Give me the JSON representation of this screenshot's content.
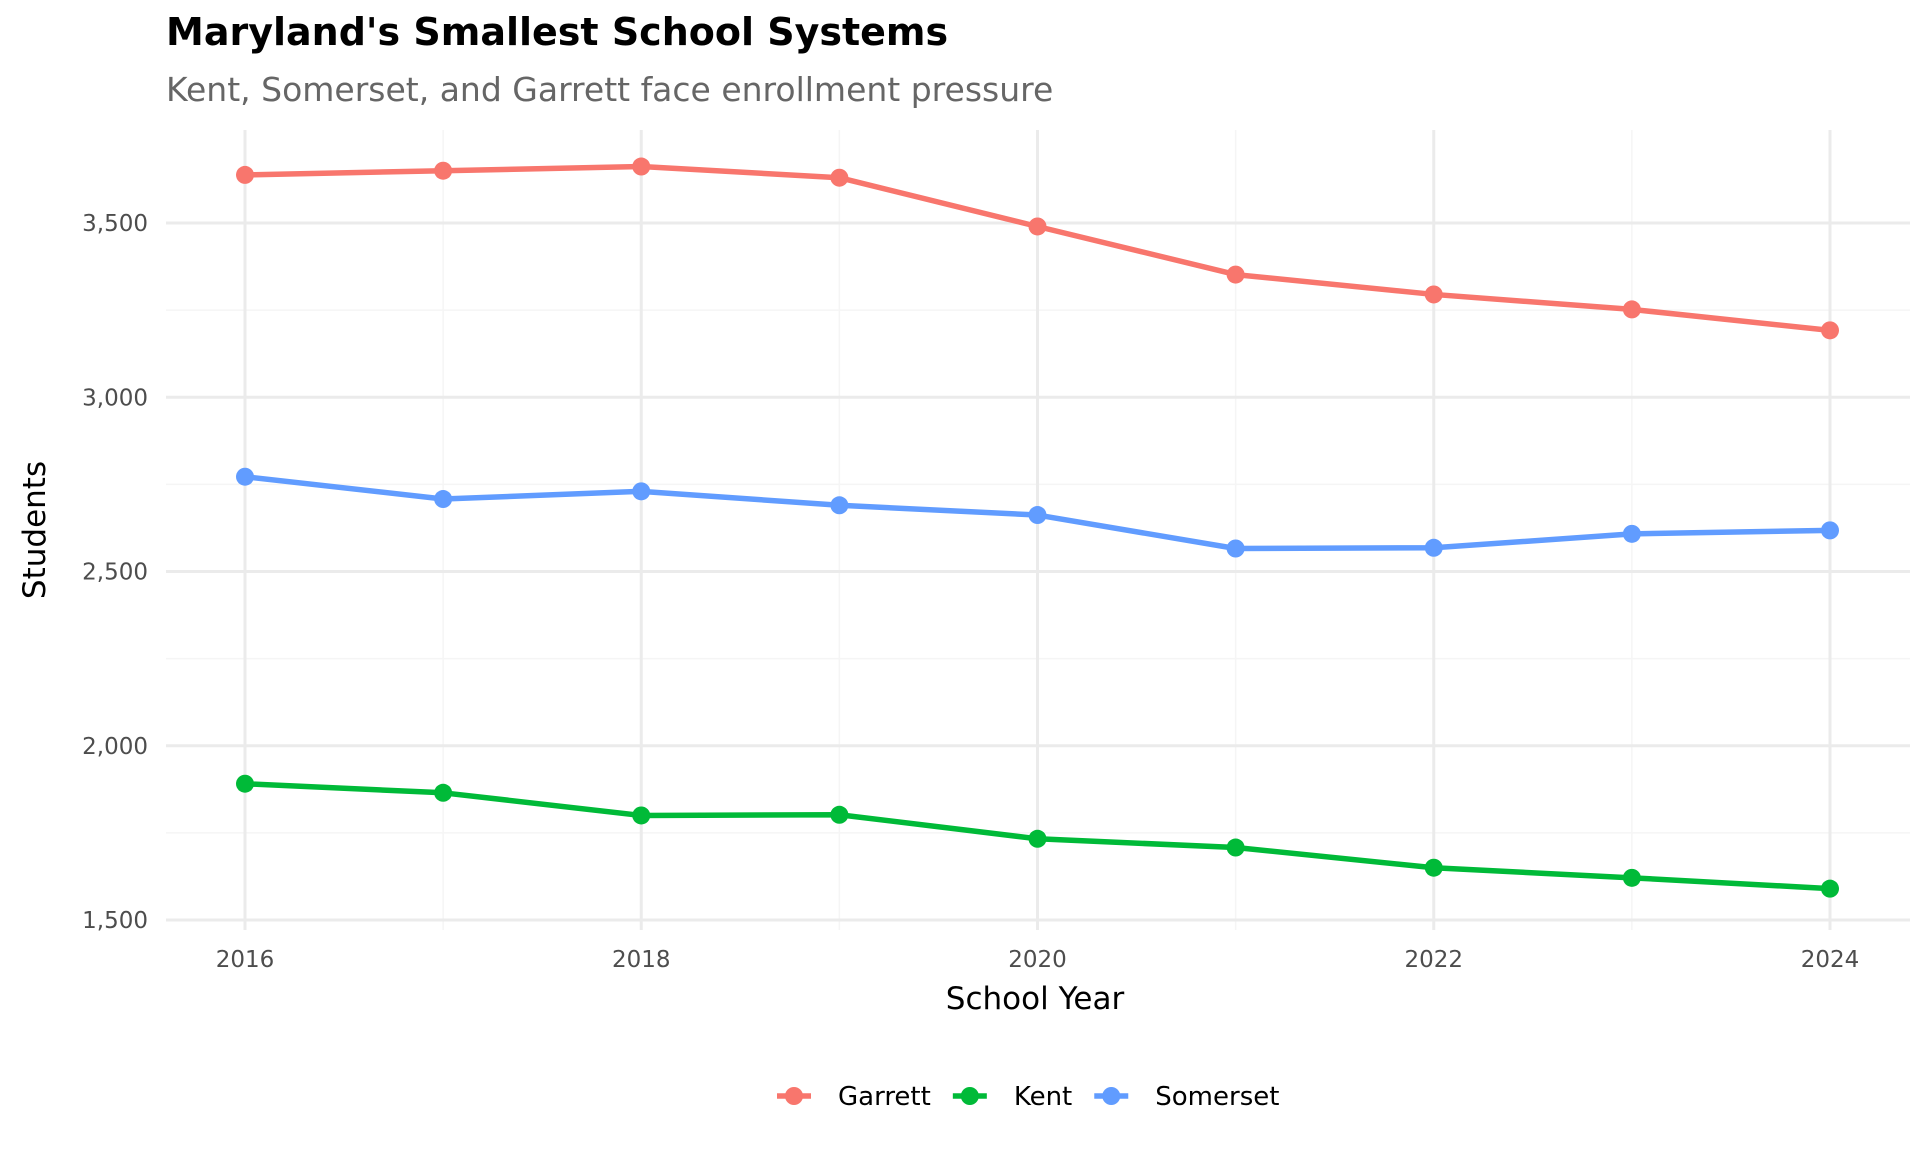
{
  "chart_data": {
    "type": "line",
    "title": "Maryland's Smallest School Systems",
    "subtitle": "Kent, Somerset, and Garrett face enrollment pressure",
    "xlabel": "School Year",
    "ylabel": "Students",
    "x": [
      2016,
      2017,
      2018,
      2019,
      2020,
      2021,
      2022,
      2023,
      2024
    ],
    "xlim": [
      2015.8,
      2024.2
    ],
    "ylim": [
      1495,
      3770
    ],
    "x_ticks": [
      2016,
      2018,
      2020,
      2022,
      2024
    ],
    "x_tick_labels": [
      "2016",
      "2018",
      "2020",
      "2022",
      "2024"
    ],
    "y_ticks": [
      1500,
      2000,
      2500,
      3000,
      3500
    ],
    "y_tick_labels": [
      "1,500",
      "2,000",
      "2,500",
      "3,000",
      "3,500"
    ],
    "grid": true,
    "legend_position": "bottom",
    "series": [
      {
        "name": "Garrett",
        "color": "#F8766D",
        "values": [
          3638,
          3650,
          3662,
          3630,
          3490,
          3352,
          3295,
          3252,
          3192
        ]
      },
      {
        "name": "Kent",
        "color": "#00BA38",
        "values": [
          1891,
          1865,
          1800,
          1802,
          1733,
          1708,
          1650,
          1621,
          1590
        ]
      },
      {
        "name": "Somerset",
        "color": "#619CFF",
        "values": [
          2772,
          2708,
          2730,
          2690,
          2662,
          2566,
          2568,
          2608,
          2618
        ]
      }
    ]
  }
}
